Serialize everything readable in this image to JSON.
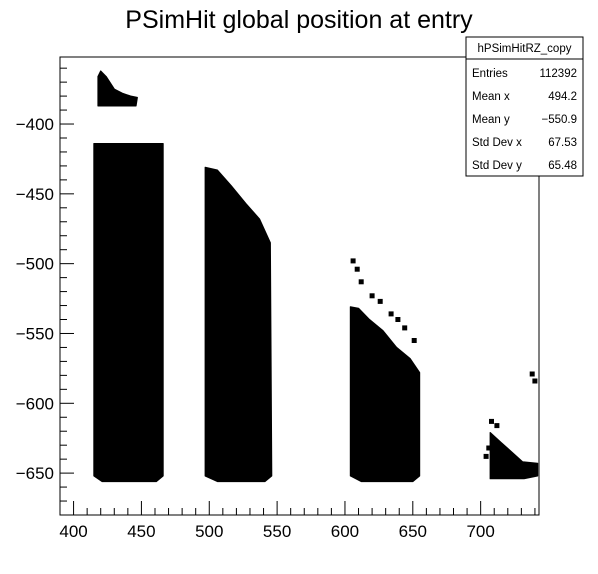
{
  "chart_data": {
    "type": "scatter",
    "title": "PSimHit global position at entry",
    "xlabel": "",
    "ylabel": "",
    "xlim": [
      390,
      743
    ],
    "ylim": [
      -680,
      -352
    ],
    "x_ticks": [
      400,
      450,
      500,
      550,
      600,
      650,
      700
    ],
    "y_ticks": [
      -400,
      -450,
      -500,
      -550,
      -600,
      -650
    ],
    "grid": false,
    "legend": "none",
    "marker_color": "#000000",
    "stats_box": {
      "position": "top-right",
      "name": "hPSimHitRZ_copy",
      "rows": [
        {
          "label": "Entries",
          "value": "112392"
        },
        {
          "label": "Mean x",
          "value": "494.2"
        },
        {
          "label": "Mean y",
          "value": "−550.9"
        },
        {
          "label": "Std Dev x",
          "value": "67.53"
        },
        {
          "label": "Std Dev y",
          "value": "65.48"
        }
      ]
    },
    "regions": [
      {
        "name": "small-cluster-top-left",
        "polygon": [
          [
            418,
            -366
          ],
          [
            420,
            -362
          ],
          [
            424,
            -366
          ],
          [
            430,
            -375
          ],
          [
            436,
            -378
          ],
          [
            442,
            -380
          ],
          [
            447,
            -381
          ],
          [
            446,
            -387
          ],
          [
            430,
            -387
          ],
          [
            418,
            -387
          ]
        ]
      },
      {
        "name": "band-1",
        "polygon": [
          [
            415,
            -414
          ],
          [
            466,
            -414
          ],
          [
            466,
            -652
          ],
          [
            461,
            -656
          ],
          [
            421,
            -656
          ],
          [
            415,
            -652
          ]
        ]
      },
      {
        "name": "band-2",
        "polygon": [
          [
            497,
            -431
          ],
          [
            506,
            -433
          ],
          [
            516,
            -444
          ],
          [
            527,
            -457
          ],
          [
            537,
            -468
          ],
          [
            545,
            -485
          ],
          [
            546,
            -652
          ],
          [
            541,
            -656
          ],
          [
            506,
            -656
          ],
          [
            497,
            -652
          ]
        ]
      },
      {
        "name": "band-3",
        "polygon": [
          [
            604,
            -531
          ],
          [
            610,
            -532
          ],
          [
            618,
            -540
          ],
          [
            628,
            -548
          ],
          [
            638,
            -560
          ],
          [
            648,
            -568
          ],
          [
            655,
            -578
          ],
          [
            655,
            -652
          ],
          [
            650,
            -656
          ],
          [
            612,
            -656
          ],
          [
            604,
            -652
          ]
        ]
      },
      {
        "name": "band-4",
        "polygon": [
          [
            707,
            -621
          ],
          [
            715,
            -628
          ],
          [
            723,
            -635
          ],
          [
            731,
            -642
          ],
          [
            742,
            -643
          ],
          [
            742,
            -652
          ],
          [
            732,
            -654
          ],
          [
            707,
            -654
          ]
        ]
      }
    ],
    "scattered_points": [
      [
        606,
        -498
      ],
      [
        609,
        -504
      ],
      [
        612,
        -513
      ],
      [
        620,
        -523
      ],
      [
        626,
        -527
      ],
      [
        634,
        -536
      ],
      [
        639,
        -540
      ],
      [
        644,
        -546
      ],
      [
        651,
        -555
      ],
      [
        708,
        -613
      ],
      [
        712,
        -616
      ],
      [
        706,
        -632
      ],
      [
        704,
        -638
      ],
      [
        720,
        -645
      ],
      [
        738,
        -579
      ],
      [
        740,
        -584
      ]
    ]
  }
}
